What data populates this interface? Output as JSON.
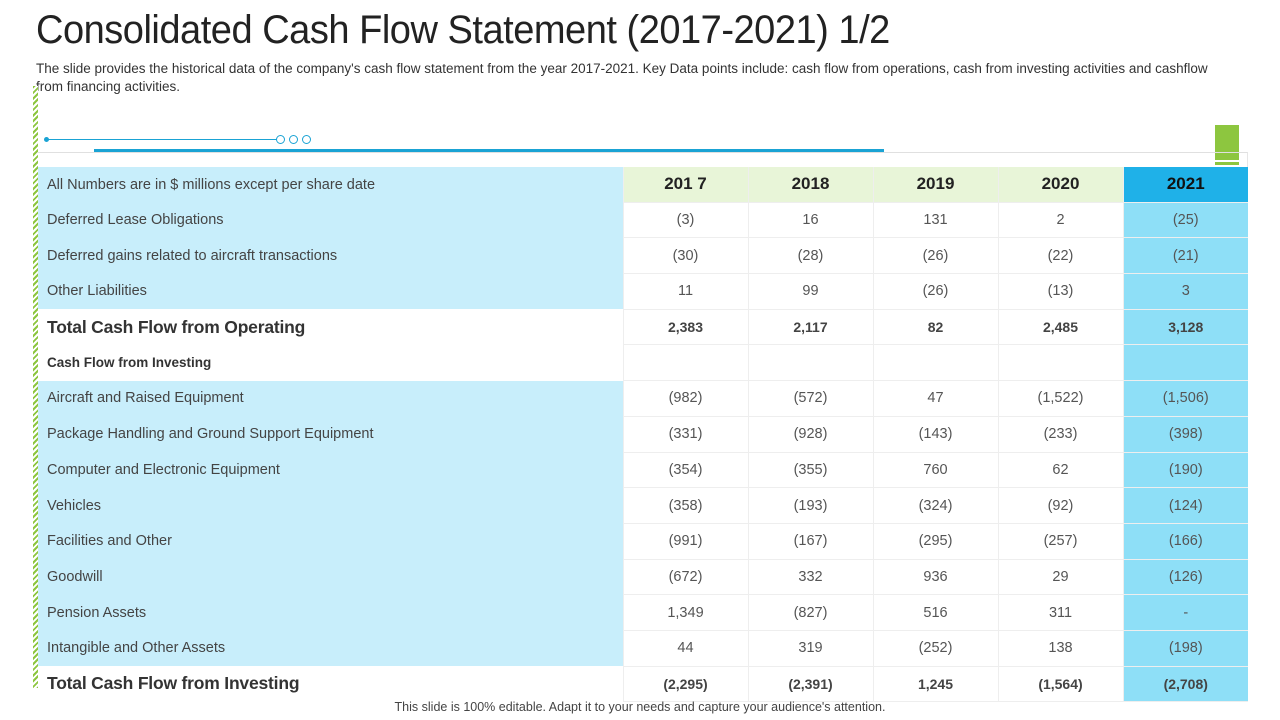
{
  "title": "Consolidated Cash Flow Statement (2017-2021) 1/2",
  "subtitle": "The slide provides the historical data of the company's cash flow statement from the year 2017-2021. Key Data points include: cash flow from operations, cash from investing activities and cashflow from financing activities.",
  "table": {
    "header_label": "All Numbers are in $ millions except per share date",
    "years": [
      "201 7",
      "2018",
      "2019",
      "2020",
      "2021"
    ],
    "rows": [
      {
        "label": "Deferred Lease Obligations",
        "values": [
          "(3)",
          "16",
          "131",
          "2",
          "(25)"
        ]
      },
      {
        "label": "Deferred gains related to aircraft transactions",
        "values": [
          "(30)",
          "(28)",
          "(26)",
          "(22)",
          "(21)"
        ]
      },
      {
        "label": "Other Liabilities",
        "values": [
          "11",
          "99",
          "(26)",
          "(13)",
          "3"
        ]
      },
      {
        "label": "Total  Cash Flow from Operating",
        "values": [
          "2,383",
          "2,117",
          "82",
          "2,485",
          "3,128"
        ]
      },
      {
        "label": "Cash Flow from Investing",
        "values": [
          "",
          "",
          "",
          "",
          ""
        ]
      },
      {
        "label": "Aircraft and Raised Equipment",
        "values": [
          "(982)",
          "(572)",
          "47",
          "(1,522)",
          "(1,506)"
        ]
      },
      {
        "label": "Package Handling and Ground Support Equipment",
        "values": [
          "(331)",
          "(928)",
          "(143)",
          "(233)",
          "(398)"
        ]
      },
      {
        "label": "Computer and Electronic Equipment",
        "values": [
          "(354)",
          "(355)",
          "760",
          "62",
          "(190)"
        ]
      },
      {
        "label": "Vehicles",
        "values": [
          "(358)",
          "(193)",
          "(324)",
          "(92)",
          "(124)"
        ]
      },
      {
        "label": "Facilities  and Other",
        "values": [
          "(991)",
          "(167)",
          "(295)",
          "(257)",
          "(166)"
        ]
      },
      {
        "label": "Goodwill",
        "values": [
          "(672)",
          "332",
          "936",
          "29",
          "(126)"
        ]
      },
      {
        "label": "Pension Assets",
        "values": [
          "1,349",
          "(827)",
          "516",
          "311",
          "-"
        ]
      },
      {
        "label": "Intangible and Other Assets",
        "values": [
          "44",
          "319",
          "(252)",
          "138",
          "(198)"
        ]
      },
      {
        "label": "Total Cash Flow from Investing",
        "values": [
          "(2,295)",
          "(2,391)",
          "1,245",
          "(1,564)",
          "(2,708)"
        ]
      }
    ]
  },
  "footer": "This slide is 100% editable. Adapt it to your needs and capture your audience's attention.",
  "colors": {
    "accent_blue": "#1fb1e8",
    "light_blue": "#c8eefb",
    "highlight_column": "#8edff7",
    "accent_green": "#8dc63f",
    "year_header_bg": "#e8f5d8"
  }
}
